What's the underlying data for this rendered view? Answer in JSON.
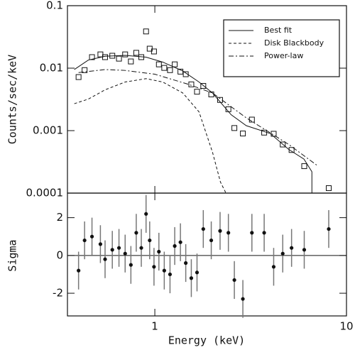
{
  "chart_data": [
    {
      "type": "line",
      "ylabel": "Counts/sec/keV",
      "xscale": "log",
      "yscale": "log",
      "xlim": [
        0.35,
        10
      ],
      "xticks": [
        1,
        10
      ],
      "ylim": [
        0.0001,
        0.1
      ],
      "yticks": [
        0.0001,
        0.001,
        0.01,
        0.1
      ],
      "legend": "upper right",
      "color": "#111111",
      "points": {
        "x": [
          0.4,
          0.43,
          0.47,
          0.52,
          0.55,
          0.6,
          0.65,
          0.7,
          0.75,
          0.8,
          0.85,
          0.9,
          0.94,
          0.99,
          1.05,
          1.12,
          1.2,
          1.27,
          1.36,
          1.45,
          1.55,
          1.66,
          1.79,
          1.97,
          2.19,
          2.42,
          2.6,
          2.88,
          3.21,
          3.72,
          4.17,
          4.65,
          5.17,
          6.02,
          8.08
        ],
        "values": [
          0.0072,
          0.0093,
          0.015,
          0.0166,
          0.015,
          0.0158,
          0.0142,
          0.0166,
          0.0128,
          0.0176,
          0.015,
          0.0387,
          0.0205,
          0.0185,
          0.0115,
          0.0101,
          0.0093,
          0.0115,
          0.0088,
          0.008,
          0.0055,
          0.0042,
          0.0052,
          0.0038,
          0.0031,
          0.0022,
          0.0011,
          0.0009,
          0.0015,
          0.00093,
          0.00089,
          0.0006,
          0.00049,
          0.00027,
          0.00012
        ]
      },
      "series": [
        {
          "name": "Best fit",
          "style": "solid",
          "x": [
            0.38,
            0.45,
            0.55,
            0.7,
            0.9,
            1.1,
            1.4,
            1.7,
            2.0,
            2.5,
            3,
            4,
            5,
            6,
            6.6,
            6.6
          ],
          "values": [
            0.0095,
            0.0135,
            0.0155,
            0.016,
            0.015,
            0.0125,
            0.009,
            0.006,
            0.004,
            0.0018,
            0.0012,
            0.0009,
            0.0005,
            0.00035,
            0.00022,
            0.0001
          ]
        },
        {
          "name": "Disk Blackbody",
          "style": "dashed",
          "x": [
            0.38,
            0.45,
            0.55,
            0.7,
            0.9,
            1.1,
            1.4,
            1.7,
            2.0,
            2.2,
            2.35
          ],
          "values": [
            0.0027,
            0.0032,
            0.0045,
            0.006,
            0.0068,
            0.006,
            0.004,
            0.002,
            0.00045,
            0.00015,
            0.0001
          ]
        },
        {
          "name": "Power-law",
          "style": "dashdot",
          "x": [
            0.4,
            0.55,
            0.7,
            1.0,
            1.5,
            2.0,
            3,
            5,
            7
          ],
          "values": [
            0.0085,
            0.0095,
            0.0092,
            0.008,
            0.0055,
            0.004,
            0.0016,
            0.0006,
            0.00028
          ]
        }
      ]
    },
    {
      "type": "scatter",
      "xlabel": "Energy (keV)",
      "ylabel": "Sigma",
      "xscale": "log",
      "xlim": [
        0.35,
        10
      ],
      "xticks": [
        1,
        10
      ],
      "ylim": [
        -3.2,
        3.3
      ],
      "yticks": [
        -2,
        0,
        2
      ],
      "error": 1,
      "color": "#111111",
      "x": [
        0.4,
        0.43,
        0.47,
        0.52,
        0.55,
        0.6,
        0.65,
        0.7,
        0.75,
        0.8,
        0.85,
        0.9,
        0.94,
        0.99,
        1.05,
        1.12,
        1.2,
        1.27,
        1.36,
        1.45,
        1.55,
        1.66,
        1.79,
        1.97,
        2.19,
        2.42,
        2.6,
        2.88,
        3.21,
        3.72,
        4.17,
        4.65,
        5.17,
        6.02,
        8.08
      ],
      "values": [
        -0.8,
        0.8,
        1.0,
        0.6,
        -0.2,
        0.3,
        0.4,
        0.1,
        -0.5,
        1.2,
        0.4,
        2.2,
        0.8,
        -0.6,
        0.2,
        -0.8,
        -1.0,
        0.5,
        0.7,
        -0.4,
        -1.2,
        -0.9,
        1.4,
        0.8,
        1.3,
        1.2,
        -1.3,
        -2.3,
        1.2,
        1.2,
        -0.6,
        0.1,
        0.4,
        0.3,
        1.4
      ]
    }
  ]
}
